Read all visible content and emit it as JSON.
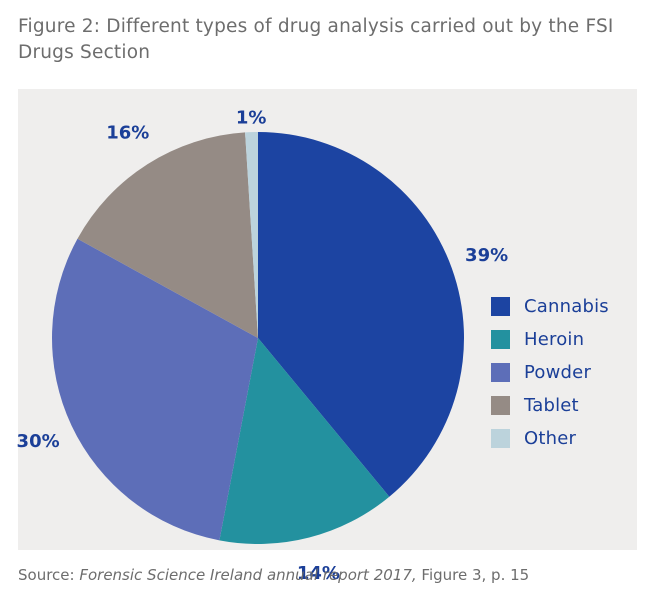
{
  "figure": {
    "title": "Figure 2: Different types of drug analysis carried out by the FSI Drugs Section",
    "source_prefix": "Source: ",
    "source_title": "Forensic Science Ireland annual report 2017,",
    "source_suffix": " Figure 3, p. 15"
  },
  "chart_data": {
    "type": "pie",
    "title": "",
    "categories": [
      "Cannabis",
      "Heroin",
      "Powder",
      "Tablet",
      "Other"
    ],
    "values": [
      39,
      14,
      30,
      16,
      1
    ],
    "labels": [
      "39%",
      "14%",
      "30%",
      "16%",
      "1%"
    ],
    "colors": [
      "#1c44a2",
      "#23919f",
      "#5d6eb8",
      "#958b85",
      "#bcd3dc"
    ],
    "label_color": "#1b3f98",
    "legend_position": "bottom-right"
  }
}
